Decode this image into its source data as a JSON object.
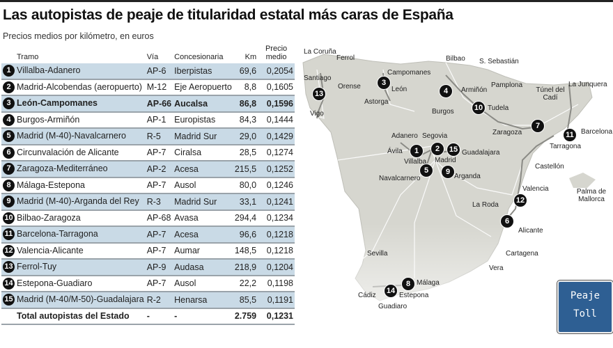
{
  "title": "Las autopistas de peaje de titularidad estatal más caras de España",
  "subtitle": "Precios medios por kilómetro, en euros",
  "headers": {
    "tramo": "Tramo",
    "via": "Vía",
    "concesionaria": "Concesionaria",
    "km": "Km",
    "precio": "Precio medio"
  },
  "rows": [
    {
      "n": "1",
      "tramo": "Villalba-Adanero",
      "via": "AP-6",
      "conc": "Iberpistas",
      "km": "69,6",
      "precio": "0,2054"
    },
    {
      "n": "2",
      "tramo": "Madrid-Alcobendas (aeropuerto)",
      "via": "M-12",
      "conc": "Eje Aeropuerto",
      "km": "8,8",
      "precio": "0,1605"
    },
    {
      "n": "3",
      "tramo": "León-Campomanes",
      "via": "AP-66",
      "conc": "Aucalsa",
      "km": "86,8",
      "precio": "0,1596"
    },
    {
      "n": "4",
      "tramo": "Burgos-Armiñón",
      "via": "AP-1",
      "conc": "Europistas",
      "km": "84,3",
      "precio": "0,1444"
    },
    {
      "n": "5",
      "tramo": "Madrid (M-40)-Navalcarnero",
      "via": "R-5",
      "conc": "Madrid Sur",
      "km": "29,0",
      "precio": "0,1429"
    },
    {
      "n": "6",
      "tramo": "Circunvalación de Alicante",
      "via": "AP-7",
      "conc": "Ciralsa",
      "km": "28,5",
      "precio": "0,1274"
    },
    {
      "n": "7",
      "tramo": "Zaragoza-Mediterráneo",
      "via": "AP-2",
      "conc": "Acesa",
      "km": "215,5",
      "precio": "0,1252"
    },
    {
      "n": "8",
      "tramo": "Málaga-Estepona",
      "via": "AP-7",
      "conc": "Ausol",
      "km": "80,0",
      "precio": "0,1246"
    },
    {
      "n": "9",
      "tramo": "Madrid (M-40)-Arganda del Rey",
      "via": "R-3",
      "conc": "Madrid Sur",
      "km": "33,1",
      "precio": "0,1241"
    },
    {
      "n": "10",
      "tramo": "Bilbao-Zaragoza",
      "via": "AP-68",
      "conc": "Avasa",
      "km": "294,4",
      "precio": "0,1234"
    },
    {
      "n": "11",
      "tramo": "Barcelona-Tarragona",
      "via": "AP-7",
      "conc": "Acesa",
      "km": "96,6",
      "precio": "0,1218"
    },
    {
      "n": "12",
      "tramo": "Valencia-Alicante",
      "via": "AP-7",
      "conc": "Aumar",
      "km": "148,5",
      "precio": "0,1218"
    },
    {
      "n": "13",
      "tramo": "Ferrol-Tuy",
      "via": "AP-9",
      "conc": "Audasa",
      "km": "218,9",
      "precio": "0,1204"
    },
    {
      "n": "14",
      "tramo": "Estepona-Guadiaro",
      "via": "AP-7",
      "conc": "Ausol",
      "km": "22,2",
      "precio": "0,1198"
    },
    {
      "n": "15",
      "tramo": "Madrid (M-40/M-50)-Guadalajara",
      "via": "R-2",
      "conc": "Henarsa",
      "km": "85,5",
      "precio": "0,1191"
    }
  ],
  "total": {
    "tramo": "Total autopistas del Estado",
    "via": "-",
    "conc": "-",
    "km": "2.759",
    "precio": "0,1231"
  },
  "map_labels": [
    "La Coruña",
    "Ferrol",
    "Santiago",
    "Orense",
    "Vigo",
    "Campomanes",
    "León",
    "Astorga",
    "Bilbao",
    "S. Sebastián",
    "Armiñón",
    "Pamplona",
    "Burgos",
    "Tudela",
    "La Junquera",
    "Túnel del Cadí",
    "Zaragoza",
    "Barcelona",
    "Tarragona",
    "Adanero",
    "Segovia",
    "Ávila",
    "Villalba",
    "Madrid",
    "Guadalajara",
    "Navalcarnero",
    "Arganda",
    "Castellón",
    "Valencia",
    "Palma de Mallorca",
    "La Roda",
    "Alicante",
    "Cartagena",
    "Sevilla",
    "Vera",
    "Málaga",
    "Cádiz",
    "Estepona",
    "Guadiaro"
  ],
  "sign": {
    "line1": "Peaje",
    "line2": "Toll"
  }
}
